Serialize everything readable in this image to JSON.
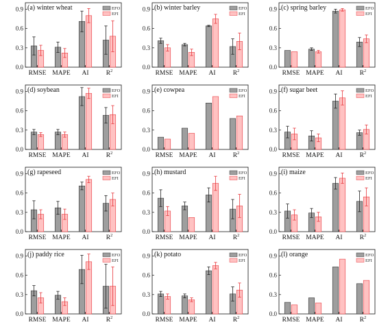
{
  "legend": [
    "EFO",
    "EFI"
  ],
  "colors": {
    "EFO": "#9e9e9e",
    "EFI": "#ffc2c2",
    "EFO_edge": "#333333",
    "EFI_edge": "#e8393e",
    "EFO_err": "#222222",
    "EFI_err": "#e8393e"
  },
  "y_ticks": [
    "0.0",
    "0.3",
    "0.6",
    "0.9"
  ],
  "categories": [
    "RMSE",
    "MAPE",
    "AI",
    "R"
  ],
  "r2_superscript": "2",
  "chart_data": [
    {
      "type": "bar",
      "title": "(a) winter wheat",
      "categories": [
        "RMSE",
        "MAPE",
        "AI",
        "R2"
      ],
      "ylim": [
        0,
        1.0
      ],
      "series": [
        {
          "name": "EFO",
          "values": [
            0.33,
            0.31,
            0.71,
            0.42
          ],
          "errors": [
            0.14,
            0.08,
            0.16,
            0.22
          ]
        },
        {
          "name": "EFI",
          "values": [
            0.26,
            0.22,
            0.8,
            0.48
          ],
          "errors": [
            0.08,
            0.07,
            0.11,
            0.24
          ]
        }
      ]
    },
    {
      "type": "bar",
      "title": "(b) winter barley",
      "categories": [
        "RMSE",
        "MAPE",
        "AI",
        "R2"
      ],
      "ylim": [
        0,
        1.0
      ],
      "series": [
        {
          "name": "EFO",
          "values": [
            0.41,
            0.35,
            0.64,
            0.32
          ],
          "errors": [
            0.04,
            0.02,
            0.01,
            0.12
          ]
        },
        {
          "name": "EFI",
          "values": [
            0.3,
            0.23,
            0.75,
            0.4
          ],
          "errors": [
            0.05,
            0.05,
            0.07,
            0.13
          ]
        }
      ]
    },
    {
      "type": "bar",
      "title": "(c) spring barley",
      "categories": [
        "RMSE",
        "MAPE",
        "AI",
        "R2"
      ],
      "ylim": [
        0,
        1.0
      ],
      "series": [
        {
          "name": "EFO",
          "values": [
            0.26,
            0.28,
            0.87,
            0.39
          ],
          "errors": [
            0.0,
            0.02,
            0.03,
            0.07
          ]
        },
        {
          "name": "EFI",
          "values": [
            0.24,
            0.24,
            0.89,
            0.44
          ],
          "errors": [
            0.0,
            0.02,
            0.02,
            0.06
          ]
        }
      ]
    },
    {
      "type": "bar",
      "title": "(d) soybean",
      "categories": [
        "RMSE",
        "MAPE",
        "AI",
        "R2"
      ],
      "ylim": [
        0,
        1.0
      ],
      "series": [
        {
          "name": "EFO",
          "values": [
            0.27,
            0.27,
            0.82,
            0.53
          ],
          "errors": [
            0.04,
            0.04,
            0.14,
            0.12
          ]
        },
        {
          "name": "EFI",
          "values": [
            0.23,
            0.23,
            0.87,
            0.54
          ],
          "errors": [
            0.03,
            0.04,
            0.08,
            0.14
          ]
        }
      ]
    },
    {
      "type": "bar",
      "title": "(e) cowpea",
      "categories": [
        "RMSE",
        "MAPE",
        "AI",
        "R2"
      ],
      "ylim": [
        0,
        1.0
      ],
      "series": [
        {
          "name": "EFO",
          "values": [
            0.19,
            0.33,
            0.72,
            0.48
          ],
          "errors": [
            0,
            0,
            0,
            0
          ]
        },
        {
          "name": "EFI",
          "values": [
            0.16,
            0.25,
            0.82,
            0.52
          ],
          "errors": [
            0,
            0,
            0,
            0
          ]
        }
      ]
    },
    {
      "type": "bar",
      "title": "(f) sugar beet",
      "categories": [
        "RMSE",
        "MAPE",
        "AI",
        "R2"
      ],
      "ylim": [
        0,
        1.0
      ],
      "series": [
        {
          "name": "EFO",
          "values": [
            0.27,
            0.21,
            0.75,
            0.26
          ],
          "errors": [
            0.09,
            0.08,
            0.11,
            0.04
          ]
        },
        {
          "name": "EFI",
          "values": [
            0.24,
            0.18,
            0.8,
            0.31
          ],
          "errors": [
            0.09,
            0.06,
            0.11,
            0.07
          ]
        }
      ]
    },
    {
      "type": "bar",
      "title": "(g) rapeseed",
      "categories": [
        "RMSE",
        "MAPE",
        "AI",
        "R2"
      ],
      "ylim": [
        0,
        1.0
      ],
      "series": [
        {
          "name": "EFO",
          "values": [
            0.34,
            0.37,
            0.71,
            0.44
          ],
          "errors": [
            0.14,
            0.1,
            0.06,
            0.12
          ]
        },
        {
          "name": "EFI",
          "values": [
            0.27,
            0.27,
            0.81,
            0.5
          ],
          "errors": [
            0.07,
            0.08,
            0.05,
            0.1
          ]
        }
      ]
    },
    {
      "type": "bar",
      "title": "(h) mustard",
      "categories": [
        "RMSE",
        "MAPE",
        "AI",
        "R2"
      ],
      "ylim": [
        0,
        1.0
      ],
      "series": [
        {
          "name": "EFO",
          "values": [
            0.52,
            0.4,
            0.57,
            0.35
          ],
          "errors": [
            0.13,
            0.06,
            0.11,
            0.15
          ]
        },
        {
          "name": "EFI",
          "values": [
            0.32,
            0.22,
            0.75,
            0.4
          ],
          "errors": [
            0.07,
            0.0,
            0.11,
            0.18
          ]
        }
      ]
    },
    {
      "type": "bar",
      "title": "(i) maize",
      "categories": [
        "RMSE",
        "MAPE",
        "AI",
        "R2"
      ],
      "ylim": [
        0,
        1.0
      ],
      "series": [
        {
          "name": "EFO",
          "values": [
            0.32,
            0.29,
            0.75,
            0.47
          ],
          "errors": [
            0.11,
            0.07,
            0.09,
            0.16
          ]
        },
        {
          "name": "EFI",
          "values": [
            0.26,
            0.23,
            0.83,
            0.54
          ],
          "errors": [
            0.08,
            0.07,
            0.08,
            0.14
          ]
        }
      ]
    },
    {
      "type": "bar",
      "title": "(j) paddy rice",
      "categories": [
        "RMSE",
        "MAPE",
        "AI",
        "R2"
      ],
      "ylim": [
        0,
        1.0
      ],
      "series": [
        {
          "name": "EFO",
          "values": [
            0.36,
            0.29,
            0.69,
            0.43
          ],
          "errors": [
            0.08,
            0.06,
            0.22,
            0.34
          ]
        },
        {
          "name": "EFI",
          "values": [
            0.25,
            0.19,
            0.81,
            0.43
          ],
          "errors": [
            0.08,
            0.06,
            0.12,
            0.3
          ]
        }
      ]
    },
    {
      "type": "bar",
      "title": "(k) potato",
      "categories": [
        "RMSE",
        "MAPE",
        "AI",
        "R2"
      ],
      "ylim": [
        0,
        1.0
      ],
      "series": [
        {
          "name": "EFO",
          "values": [
            0.31,
            0.28,
            0.67,
            0.31
          ],
          "errors": [
            0.04,
            0.03,
            0.06,
            0.11
          ]
        },
        {
          "name": "EFI",
          "values": [
            0.27,
            0.22,
            0.75,
            0.37
          ],
          "errors": [
            0.04,
            0.03,
            0.05,
            0.11
          ]
        }
      ]
    },
    {
      "type": "bar",
      "title": "(l) orange",
      "categories": [
        "RMSE",
        "MAPE",
        "AI",
        "R2"
      ],
      "ylim": [
        0,
        1.0
      ],
      "series": [
        {
          "name": "EFO",
          "values": [
            0.18,
            0.25,
            0.73,
            0.47
          ],
          "errors": [
            0,
            0,
            0,
            0
          ]
        },
        {
          "name": "EFI",
          "values": [
            0.14,
            0.17,
            0.85,
            0.52
          ],
          "errors": [
            0,
            0,
            0,
            0
          ]
        }
      ]
    }
  ]
}
